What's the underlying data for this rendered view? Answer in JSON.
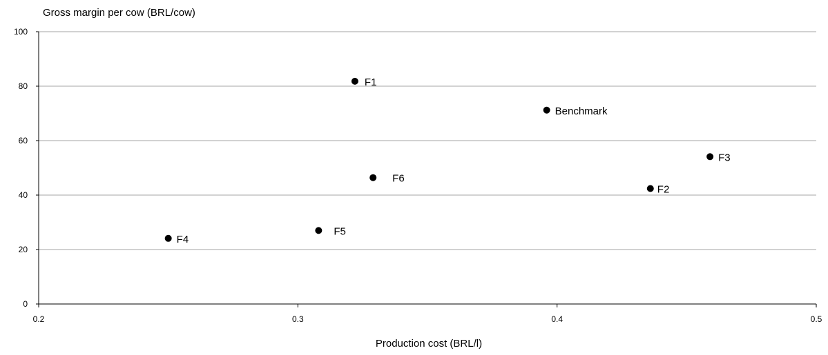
{
  "chart_data": {
    "type": "scatter",
    "ylabel": "Gross margin per cow (BRL/cow)",
    "xlabel": "Production cost (BRL/l)",
    "xlim": [
      0.2,
      0.5
    ],
    "ylim": [
      0,
      100
    ],
    "xticks": [
      0.2,
      0.3,
      0.4,
      0.5
    ],
    "xtick_labels": [
      "0.2",
      "0.3",
      "0.4",
      "0.5"
    ],
    "yticks": [
      0,
      20,
      40,
      60,
      80,
      100
    ],
    "ytick_labels": [
      "0",
      "20",
      "40",
      "60",
      "80",
      "100"
    ],
    "grid": "horizontal",
    "points": [
      {
        "label": "F1",
        "x": 0.322,
        "y": 81.8
      },
      {
        "label": "Benchmark",
        "x": 0.396,
        "y": 71.2
      },
      {
        "label": "F3",
        "x": 0.459,
        "y": 54.1
      },
      {
        "label": "F6",
        "x": 0.329,
        "y": 46.4
      },
      {
        "label": "F2",
        "x": 0.436,
        "y": 42.4
      },
      {
        "label": "F5",
        "x": 0.308,
        "y": 27.0
      },
      {
        "label": "F4",
        "x": 0.25,
        "y": 24.1
      }
    ]
  }
}
